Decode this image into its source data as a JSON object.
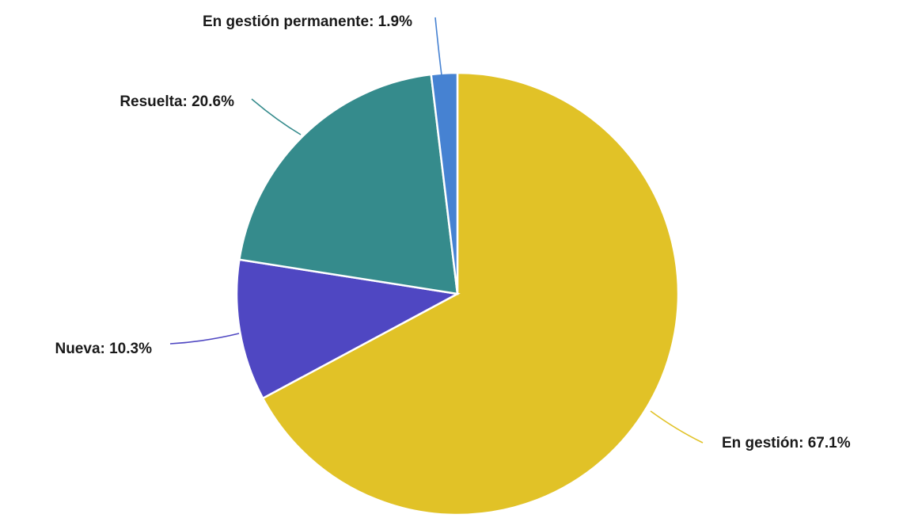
{
  "chart_data": {
    "type": "pie",
    "title": "",
    "slices": [
      {
        "label": "En gestión",
        "value": 67.1,
        "display": "En gestión: 67.1%",
        "color": "#e1c227"
      },
      {
        "label": "Nueva",
        "value": 10.3,
        "display": "Nueva: 10.3%",
        "color": "#4f47c2"
      },
      {
        "label": "Resuelta",
        "value": 20.6,
        "display": "Resuelta: 20.6%",
        "color": "#358b8c"
      },
      {
        "label": "En gestión permanente",
        "value": 1.9,
        "display": "En gestión permanente: 1.9%",
        "color": "#4682d2"
      }
    ],
    "legend": "none",
    "labels": "outside with leader lines"
  }
}
